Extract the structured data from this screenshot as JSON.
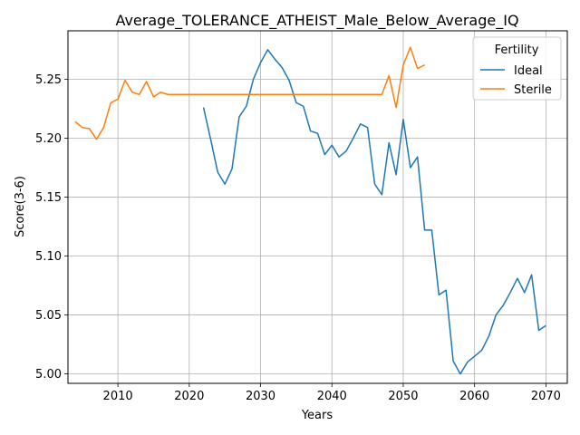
{
  "chart_data": {
    "type": "line",
    "title": "Average_TOLERANCE_ATHEIST_Male_Below_Average_IQ",
    "xlabel": "Years",
    "ylabel": "Score(3-6)",
    "xlim": [
      2003,
      2073
    ],
    "ylim": [
      4.992,
      5.291
    ],
    "xticks": [
      2010,
      2020,
      2030,
      2040,
      2050,
      2060,
      2070
    ],
    "yticks": [
      5.0,
      5.05,
      5.1,
      5.15,
      5.2,
      5.25
    ],
    "ytick_labels": [
      "5.00",
      "5.05",
      "5.10",
      "5.15",
      "5.20",
      "5.25"
    ],
    "grid": true,
    "legend": {
      "title": "Fertility",
      "placement": "top-right"
    },
    "series": [
      {
        "name": "Ideal",
        "color": "#1f77b4",
        "x": [
          2022,
          2023,
          2024,
          2025,
          2026,
          2027,
          2028,
          2029,
          2030,
          2031,
          2032,
          2033,
          2034,
          2035,
          2036,
          2037,
          2038,
          2039,
          2040,
          2041,
          2042,
          2043,
          2044,
          2045,
          2046,
          2047,
          2048,
          2049,
          2050,
          2051,
          2052,
          2053,
          2054,
          2055,
          2056,
          2057,
          2058,
          2059,
          2060,
          2061,
          2062,
          2063,
          2064,
          2065,
          2066,
          2067,
          2068,
          2069,
          2070
        ],
        "y": [
          5.226,
          5.199,
          5.171,
          5.161,
          5.174,
          5.218,
          5.227,
          5.25,
          5.264,
          5.275,
          5.267,
          5.26,
          5.249,
          5.23,
          5.227,
          5.206,
          5.204,
          5.186,
          5.194,
          5.184,
          5.189,
          5.2,
          5.212,
          5.209,
          5.161,
          5.152,
          5.196,
          5.169,
          5.216,
          5.175,
          5.184,
          5.122,
          5.122,
          5.067,
          5.071,
          5.011,
          5.0,
          5.01,
          5.015,
          5.02,
          5.032,
          5.05,
          5.058,
          5.069,
          5.081,
          5.069,
          5.084,
          5.037,
          5.041
        ]
      },
      {
        "name": "Sterile",
        "color": "#ff7f0e",
        "x": [
          2004,
          2005,
          2006,
          2007,
          2008,
          2009,
          2010,
          2011,
          2012,
          2013,
          2014,
          2015,
          2016,
          2017,
          2018,
          2019,
          2020,
          2021,
          2022,
          2023,
          2024,
          2025,
          2026,
          2027,
          2028,
          2029,
          2030,
          2031,
          2032,
          2033,
          2034,
          2035,
          2036,
          2037,
          2038,
          2039,
          2040,
          2041,
          2042,
          2043,
          2044,
          2045,
          2046,
          2047,
          2048,
          2049,
          2050,
          2051,
          2052,
          2053
        ],
        "y": [
          5.214,
          5.209,
          5.208,
          5.199,
          5.209,
          5.23,
          5.233,
          5.249,
          5.239,
          5.237,
          5.248,
          5.235,
          5.239,
          5.237,
          5.237,
          5.237,
          5.237,
          5.237,
          5.237,
          5.237,
          5.237,
          5.237,
          5.237,
          5.237,
          5.237,
          5.237,
          5.237,
          5.237,
          5.237,
          5.237,
          5.237,
          5.237,
          5.237,
          5.237,
          5.237,
          5.237,
          5.237,
          5.237,
          5.237,
          5.237,
          5.237,
          5.237,
          5.237,
          5.237,
          5.253,
          5.226,
          5.262,
          5.277,
          5.259,
          5.262
        ]
      }
    ]
  }
}
